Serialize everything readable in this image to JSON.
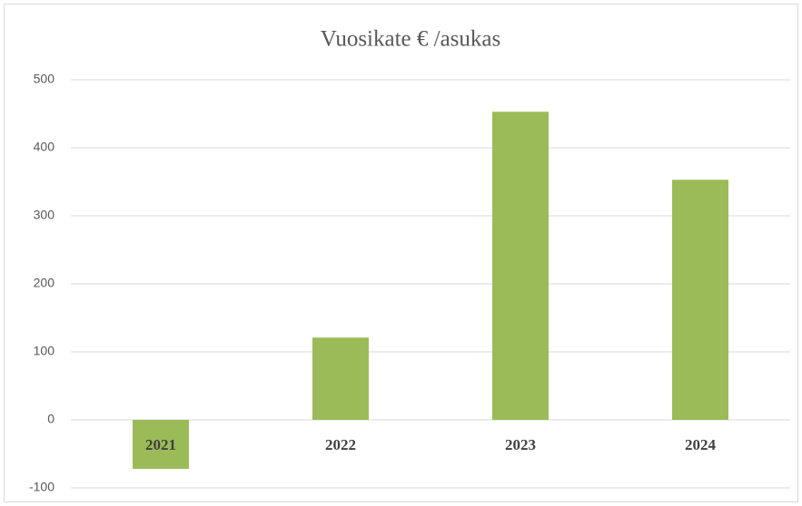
{
  "chart_data": {
    "type": "bar",
    "title": "Vuosikate € /asukas",
    "categories": [
      "2021",
      "2022",
      "2023",
      "2024"
    ],
    "values": [
      -72,
      121,
      453,
      353
    ],
    "color": "#9bbb59",
    "ylim": [
      -100,
      500
    ],
    "yticks": [
      -100,
      0,
      100,
      200,
      300,
      400,
      500
    ],
    "grid": true
  }
}
